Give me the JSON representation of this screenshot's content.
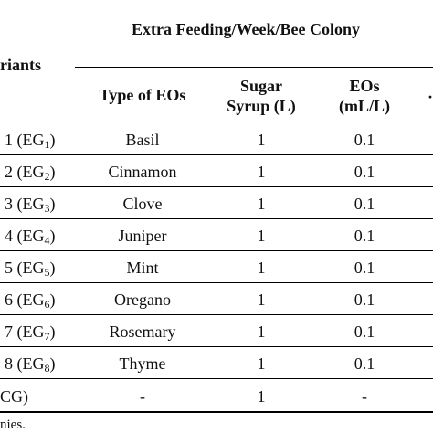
{
  "header": {
    "group_title": "Extra Feeding/Week/Bee Colony",
    "variants_label": "riants",
    "col_type": "Type of EOs",
    "col_sugar_line1": "Sugar",
    "col_sugar_line2": "Syrup (L)",
    "col_eos_line1": "EOs",
    "col_eos_line2": "(mL/L)",
    "col_cut": "·"
  },
  "rows": [
    {
      "variant_num": "1 (EG",
      "variant_sub": "1",
      "variant_close": ")",
      "type": "Basil",
      "sugar": "1",
      "eos": "0.1"
    },
    {
      "variant_num": "2 (EG",
      "variant_sub": "2",
      "variant_close": ")",
      "type": "Cinnamon",
      "sugar": "1",
      "eos": "0.1"
    },
    {
      "variant_num": "3 (EG",
      "variant_sub": "3",
      "variant_close": ")",
      "type": "Clove",
      "sugar": "1",
      "eos": "0.1"
    },
    {
      "variant_num": "4 (EG",
      "variant_sub": "4",
      "variant_close": ")",
      "type": "Juniper",
      "sugar": "1",
      "eos": "0.1"
    },
    {
      "variant_num": "5 (EG",
      "variant_sub": "5",
      "variant_close": ")",
      "type": "Mint",
      "sugar": "1",
      "eos": "0.1"
    },
    {
      "variant_num": "6 (EG",
      "variant_sub": "6",
      "variant_close": ")",
      "type": "Oregano",
      "sugar": "1",
      "eos": "0.1"
    },
    {
      "variant_num": "7 (EG",
      "variant_sub": "7",
      "variant_close": ")",
      "type": "Rosemary",
      "sugar": "1",
      "eos": "0.1"
    },
    {
      "variant_num": "8 (EG",
      "variant_sub": "8",
      "variant_close": ")",
      "type": "Thyme",
      "sugar": "1",
      "eos": "0.1"
    }
  ],
  "control_row": {
    "variant": "CG)",
    "type": "-",
    "sugar": "1",
    "eos": "-"
  },
  "footnote": "nies."
}
